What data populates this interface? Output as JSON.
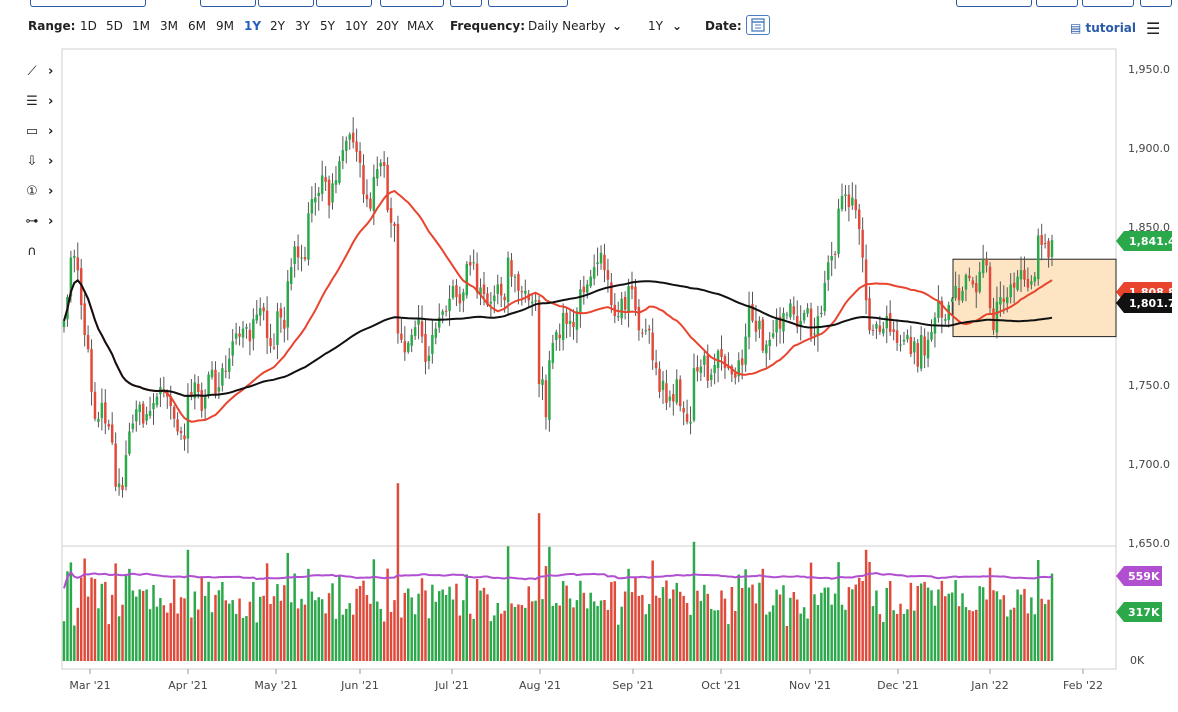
{
  "toolbar": {
    "range_label": "Range:",
    "ranges": [
      "1D",
      "5D",
      "1M",
      "3M",
      "6M",
      "9M",
      "1Y",
      "2Y",
      "3Y",
      "5Y",
      "10Y",
      "20Y",
      "MAX"
    ],
    "active_range": "1Y",
    "frequency_label": "Frequency:",
    "frequency_value": "Daily Nearby",
    "period_value": "1Y",
    "date_label": "Date:",
    "tutorial_label": "tutorial"
  },
  "icons": [
    "trend-line-icon",
    "fibonacci-icon",
    "rectangle-icon",
    "arrow-down-icon",
    "number-marker-icon",
    "measure-icon",
    "magnet-icon"
  ],
  "colors": {
    "up": "#2aa84a",
    "down": "#e04a3a",
    "ma_fast": "#e8442e",
    "ma_slow": "#111111",
    "volume_avg": "#b04fd0",
    "zone_fill": "#fde5c4",
    "zone_border": "#222222",
    "last_price_badge": "#2aa84a"
  },
  "chart_data": {
    "type": "candlestick",
    "price_axis": {
      "ticks": [
        "1,950.0",
        "1,900.0",
        "1,850.0",
        "1,750.0",
        "1,700.0",
        "1,650.0"
      ],
      "range": [
        1650,
        1950
      ]
    },
    "volume_axis": {
      "ticks": [
        "0K"
      ]
    },
    "x_ticks": [
      "Mar '21",
      "Apr '21",
      "May '21",
      "Jun '21",
      "Jul '21",
      "Aug '21",
      "Sep '21",
      "Oct '21",
      "Nov '21",
      "Dec '21",
      "Jan '22",
      "Feb '22"
    ],
    "tags": [
      {
        "name": "last price",
        "value": "1,841.4",
        "color": "#2aa84a"
      },
      {
        "name": "50-day MA",
        "value": "1,808.8",
        "color": "#e8442e"
      },
      {
        "name": "200-day MA",
        "value": "1,801.7",
        "color": "#111111"
      },
      {
        "name": "volume average",
        "value": "559K",
        "color": "#b04fd0"
      },
      {
        "name": "volume",
        "value": "317K",
        "color": "#2aa84a"
      }
    ],
    "zone": {
      "price_low": 1780,
      "price_high": 1829,
      "start": "Dec 17 2021",
      "end": "Feb 1 2022"
    },
    "closes": [
      1790,
      1805,
      1830,
      1831,
      1822,
      1800,
      1781,
      1772,
      1745,
      1728,
      1728,
      1738,
      1725,
      1723,
      1713,
      1685,
      1687,
      1683,
      1705,
      1720,
      1725,
      1734,
      1737,
      1725,
      1731,
      1733,
      1738,
      1742,
      1748,
      1746,
      1742,
      1736,
      1728,
      1720,
      1719,
      1715,
      1743,
      1742,
      1751,
      1745,
      1733,
      1742,
      1756,
      1759,
      1744,
      1748,
      1760,
      1758,
      1766,
      1777,
      1782,
      1780,
      1785,
      1786,
      1777,
      1791,
      1794,
      1798,
      1796,
      1779,
      1774,
      1773,
      1796,
      1792,
      1785,
      1815,
      1824,
      1837,
      1830,
      1830,
      1829,
      1858,
      1867,
      1868,
      1871,
      1882,
      1878,
      1863,
      1877,
      1879,
      1891,
      1898,
      1904,
      1908,
      1903,
      1897,
      1890,
      1870,
      1867,
      1861,
      1881,
      1886,
      1890,
      1888,
      1860,
      1852,
      1850,
      1782,
      1778,
      1770,
      1776,
      1781,
      1786,
      1791,
      1780,
      1764,
      1768,
      1781,
      1785,
      1792,
      1796,
      1796,
      1804,
      1812,
      1805,
      1801,
      1808,
      1826,
      1825,
      1827,
      1808,
      1811,
      1807,
      1800,
      1802,
      1806,
      1813,
      1806,
      1803,
      1830,
      1818,
      1818,
      1809,
      1808,
      1809,
      1803,
      1802,
      1803,
      1750,
      1753,
      1729,
      1765,
      1776,
      1783,
      1779,
      1795,
      1788,
      1790,
      1786,
      1796,
      1810,
      1808,
      1813,
      1818,
      1824,
      1827,
      1833,
      1822,
      1816,
      1800,
      1793,
      1793,
      1804,
      1797,
      1812,
      1810,
      1797,
      1784,
      1782,
      1784,
      1784,
      1765,
      1760,
      1745,
      1752,
      1738,
      1742,
      1739,
      1753,
      1736,
      1732,
      1726,
      1726,
      1760,
      1758,
      1761,
      1768,
      1752,
      1756,
      1762,
      1771,
      1767,
      1760,
      1760,
      1756,
      1754,
      1765,
      1762,
      1780,
      1800,
      1790,
      1783,
      1790,
      1771,
      1775,
      1778,
      1782,
      1791,
      1785,
      1795,
      1794,
      1801,
      1794,
      1786,
      1790,
      1795,
      1798,
      1780,
      1782,
      1793,
      1795,
      1814,
      1827,
      1831,
      1832,
      1861,
      1869,
      1870,
      1862,
      1868,
      1860,
      1848,
      1830,
      1803,
      1784,
      1784,
      1788,
      1783,
      1785,
      1793,
      1783,
      1783,
      1776,
      1775,
      1778,
      1781,
      1769,
      1777,
      1761,
      1781,
      1768,
      1778,
      1783,
      1792,
      1803,
      1792,
      1791,
      1800,
      1804,
      1812,
      1803,
      1809,
      1819,
      1817,
      1813,
      1808,
      1821,
      1829,
      1825,
      1798,
      1784,
      1802,
      1805,
      1802,
      1805,
      1813,
      1811,
      1818,
      1822,
      1816,
      1811,
      1815,
      1818,
      1844,
      1838,
      1839,
      1830,
      1841
    ]
  }
}
